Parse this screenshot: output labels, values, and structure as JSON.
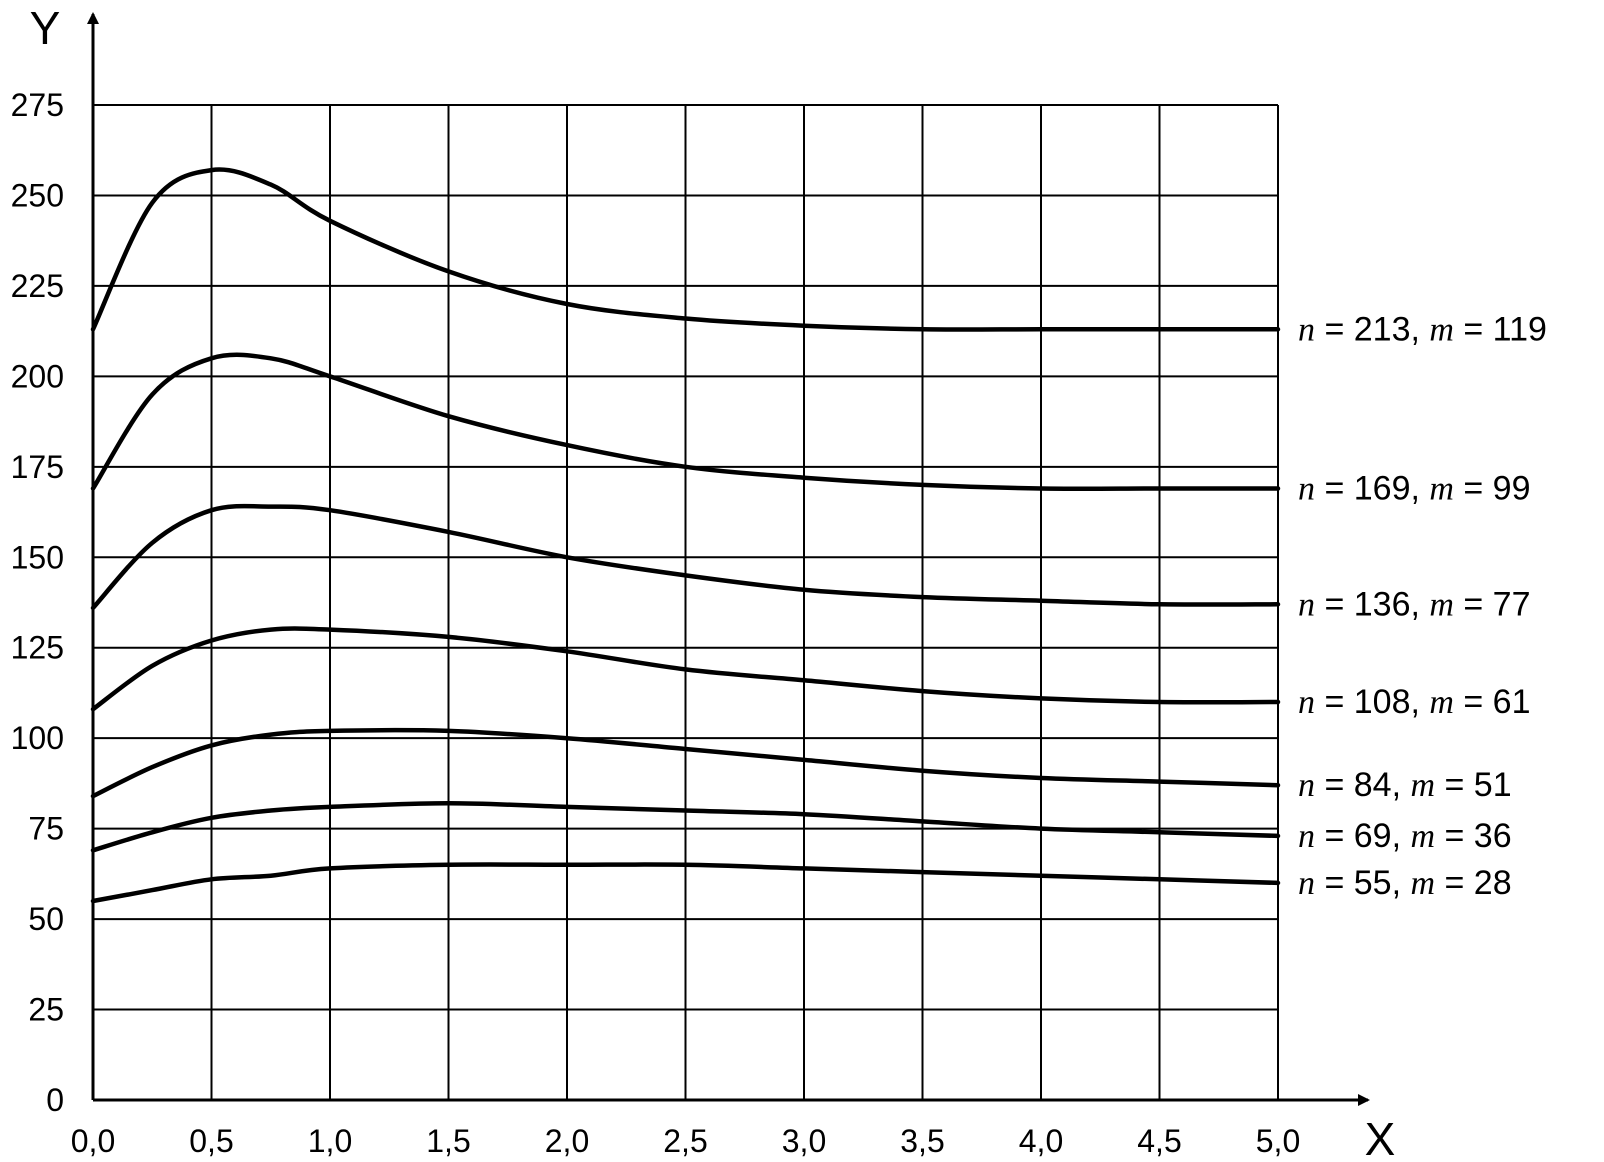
{
  "chart_data": {
    "type": "line",
    "xlabel": "X",
    "ylabel": "Y",
    "xlim": [
      0,
      5
    ],
    "ylim": [
      0,
      275
    ],
    "x_ticks": [
      "0,0",
      "0,5",
      "1,0",
      "1,5",
      "2,0",
      "2,5",
      "3,0",
      "3,5",
      "4,0",
      "4,5",
      "5,0"
    ],
    "y_ticks": [
      "0",
      "25",
      "50",
      "75",
      "100",
      "125",
      "150",
      "175",
      "200",
      "225",
      "250",
      "275"
    ],
    "grid": true,
    "x": [
      0,
      0.25,
      0.5,
      0.75,
      1.0,
      1.5,
      2.0,
      2.5,
      3.0,
      3.5,
      4.0,
      4.5,
      5.0
    ],
    "series": [
      {
        "name": "n = 213, m = 119",
        "label": {
          "n": "213",
          "m": "119"
        },
        "values": [
          213,
          248,
          257,
          253,
          243,
          229,
          220,
          216,
          214,
          213,
          213,
          213,
          213
        ]
      },
      {
        "name": "n = 169, m = 99",
        "label": {
          "n": "169",
          "m": "99"
        },
        "values": [
          169,
          195,
          205,
          205,
          200,
          189,
          181,
          175,
          172,
          170,
          169,
          169,
          169
        ]
      },
      {
        "name": "n = 136, m = 77",
        "label": {
          "n": "136",
          "m": "77"
        },
        "values": [
          136,
          154,
          163,
          164,
          163,
          157,
          150,
          145,
          141,
          139,
          138,
          137,
          137
        ]
      },
      {
        "name": "n = 108, m = 61",
        "label": {
          "n": "108",
          "m": "61"
        },
        "values": [
          108,
          120,
          127,
          130,
          130,
          128,
          124,
          119,
          116,
          113,
          111,
          110,
          110
        ]
      },
      {
        "name": "n = 84, m = 51",
        "label": {
          "n": "84",
          "m": "51"
        },
        "values": [
          84,
          92,
          98,
          101,
          102,
          102,
          100,
          97,
          94,
          91,
          89,
          88,
          87
        ]
      },
      {
        "name": "n = 69, m = 36",
        "label": {
          "n": "69",
          "m": "36"
        },
        "values": [
          69,
          74,
          78,
          80,
          81,
          82,
          81,
          80,
          79,
          77,
          75,
          74,
          73
        ]
      },
      {
        "name": "n = 55, m = 28",
        "label": {
          "n": "55",
          "m": "28"
        },
        "values": [
          55,
          58,
          61,
          62,
          64,
          65,
          65,
          65,
          64,
          63,
          62,
          61,
          60
        ]
      }
    ]
  }
}
